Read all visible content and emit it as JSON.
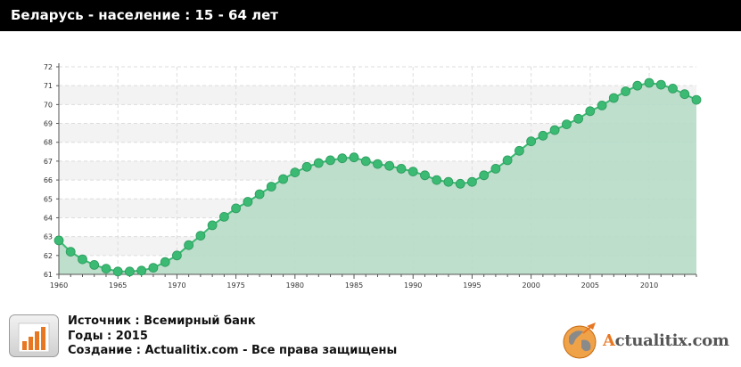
{
  "header": {
    "title": "Беларусь - население : 15 - 64 лет"
  },
  "footer": {
    "source": "Источник : Всемирный банк",
    "years": "Годы : 2015",
    "created": "Создание : Actualitix.com -  Все права защищены",
    "logo_text": "Actualitix.com",
    "icon": "bar-chart-icon",
    "logo_icon": "globe-icon"
  },
  "colors": {
    "line": "#3aba72",
    "fill": "#b6dcc6",
    "header_bg": "#000000",
    "accent": "#e87722"
  },
  "chart_data": {
    "type": "area",
    "title": "Беларусь - население : 15 - 64 лет",
    "xlabel": "",
    "ylabel": "",
    "xlim": [
      1960,
      2014
    ],
    "ylim": [
      61,
      72
    ],
    "x_ticks": [
      1960,
      1965,
      1970,
      1975,
      1980,
      1985,
      1990,
      1995,
      2000,
      2005,
      2010
    ],
    "y_ticks": [
      61,
      62,
      63,
      64,
      65,
      66,
      67,
      68,
      69,
      70,
      71,
      72
    ],
    "grid": true,
    "legend": "none",
    "x": [
      1960,
      1961,
      1962,
      1963,
      1964,
      1965,
      1966,
      1967,
      1968,
      1969,
      1970,
      1971,
      1972,
      1973,
      1974,
      1975,
      1976,
      1977,
      1978,
      1979,
      1980,
      1981,
      1982,
      1983,
      1984,
      1985,
      1986,
      1987,
      1988,
      1989,
      1990,
      1991,
      1992,
      1993,
      1994,
      1995,
      1996,
      1997,
      1998,
      1999,
      2000,
      2001,
      2002,
      2003,
      2004,
      2005,
      2006,
      2007,
      2008,
      2009,
      2010,
      2011,
      2012,
      2013,
      2014
    ],
    "series": [
      {
        "values": [
          62.8,
          62.2,
          61.8,
          61.5,
          61.3,
          61.15,
          61.15,
          61.2,
          61.35,
          61.65,
          62.0,
          62.55,
          63.05,
          63.6,
          64.05,
          64.5,
          64.85,
          65.25,
          65.65,
          66.05,
          66.4,
          66.7,
          66.9,
          67.05,
          67.15,
          67.2,
          67.0,
          66.85,
          66.75,
          66.6,
          66.45,
          66.25,
          66.0,
          65.9,
          65.8,
          65.9,
          66.25,
          66.6,
          67.05,
          67.55,
          68.05,
          68.35,
          68.65,
          68.95,
          69.25,
          69.65,
          69.95,
          70.35,
          70.7,
          71.0,
          71.15,
          71.05,
          70.85,
          70.55,
          70.25
        ]
      }
    ]
  }
}
